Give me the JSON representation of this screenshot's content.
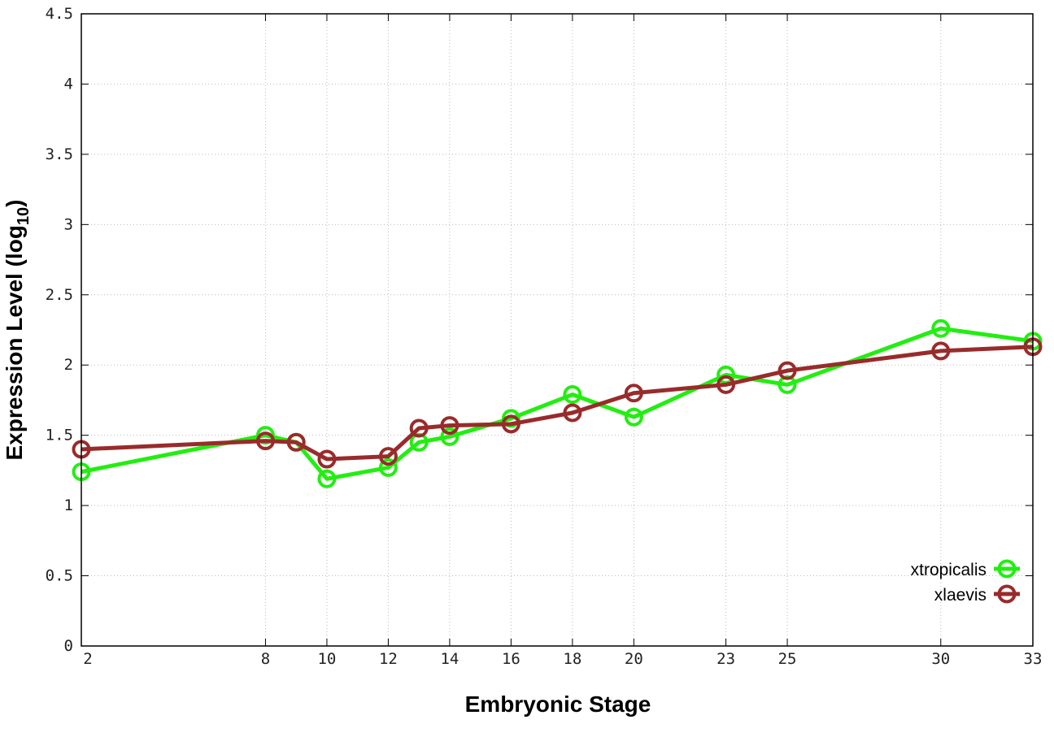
{
  "chart_data": {
    "type": "line",
    "xlabel": "Embryonic Stage",
    "ylabel": "Expression Level (log",
    "ylabel_subscript": "10",
    "ylabel_suffix": ")",
    "x": [
      2,
      8,
      9,
      10,
      12,
      13,
      14,
      16,
      18,
      20,
      23,
      25,
      30,
      33
    ],
    "x_tick_labels": [
      "2",
      "8",
      "10",
      "12",
      "14",
      "16",
      "18",
      "20",
      "23",
      "25",
      "30",
      "33"
    ],
    "x_tick_values": [
      2,
      8,
      10,
      12,
      14,
      16,
      18,
      20,
      23,
      25,
      30,
      33
    ],
    "xlim": [
      2,
      33
    ],
    "ylim": [
      0,
      4.5
    ],
    "y_tick_values": [
      0,
      0.5,
      1,
      1.5,
      2,
      2.5,
      3,
      3.5,
      4,
      4.5
    ],
    "y_tick_labels": [
      "0",
      "0.5",
      "1",
      "1.5",
      "2",
      "2.5",
      "3",
      "3.5",
      "4",
      "4.5"
    ],
    "grid": true,
    "legend_position": "bottom-right",
    "series": [
      {
        "name": "xtropicalis",
        "color": "#22ee11",
        "values": [
          1.24,
          1.5,
          1.45,
          1.19,
          1.27,
          1.45,
          1.49,
          1.62,
          1.79,
          1.63,
          1.93,
          1.86,
          2.26,
          2.17
        ]
      },
      {
        "name": "xlaevis",
        "color": "#992b2b",
        "values": [
          1.4,
          1.46,
          1.45,
          1.33,
          1.35,
          1.55,
          1.57,
          1.58,
          1.66,
          1.8,
          1.86,
          1.96,
          2.1,
          2.13
        ]
      }
    ]
  }
}
